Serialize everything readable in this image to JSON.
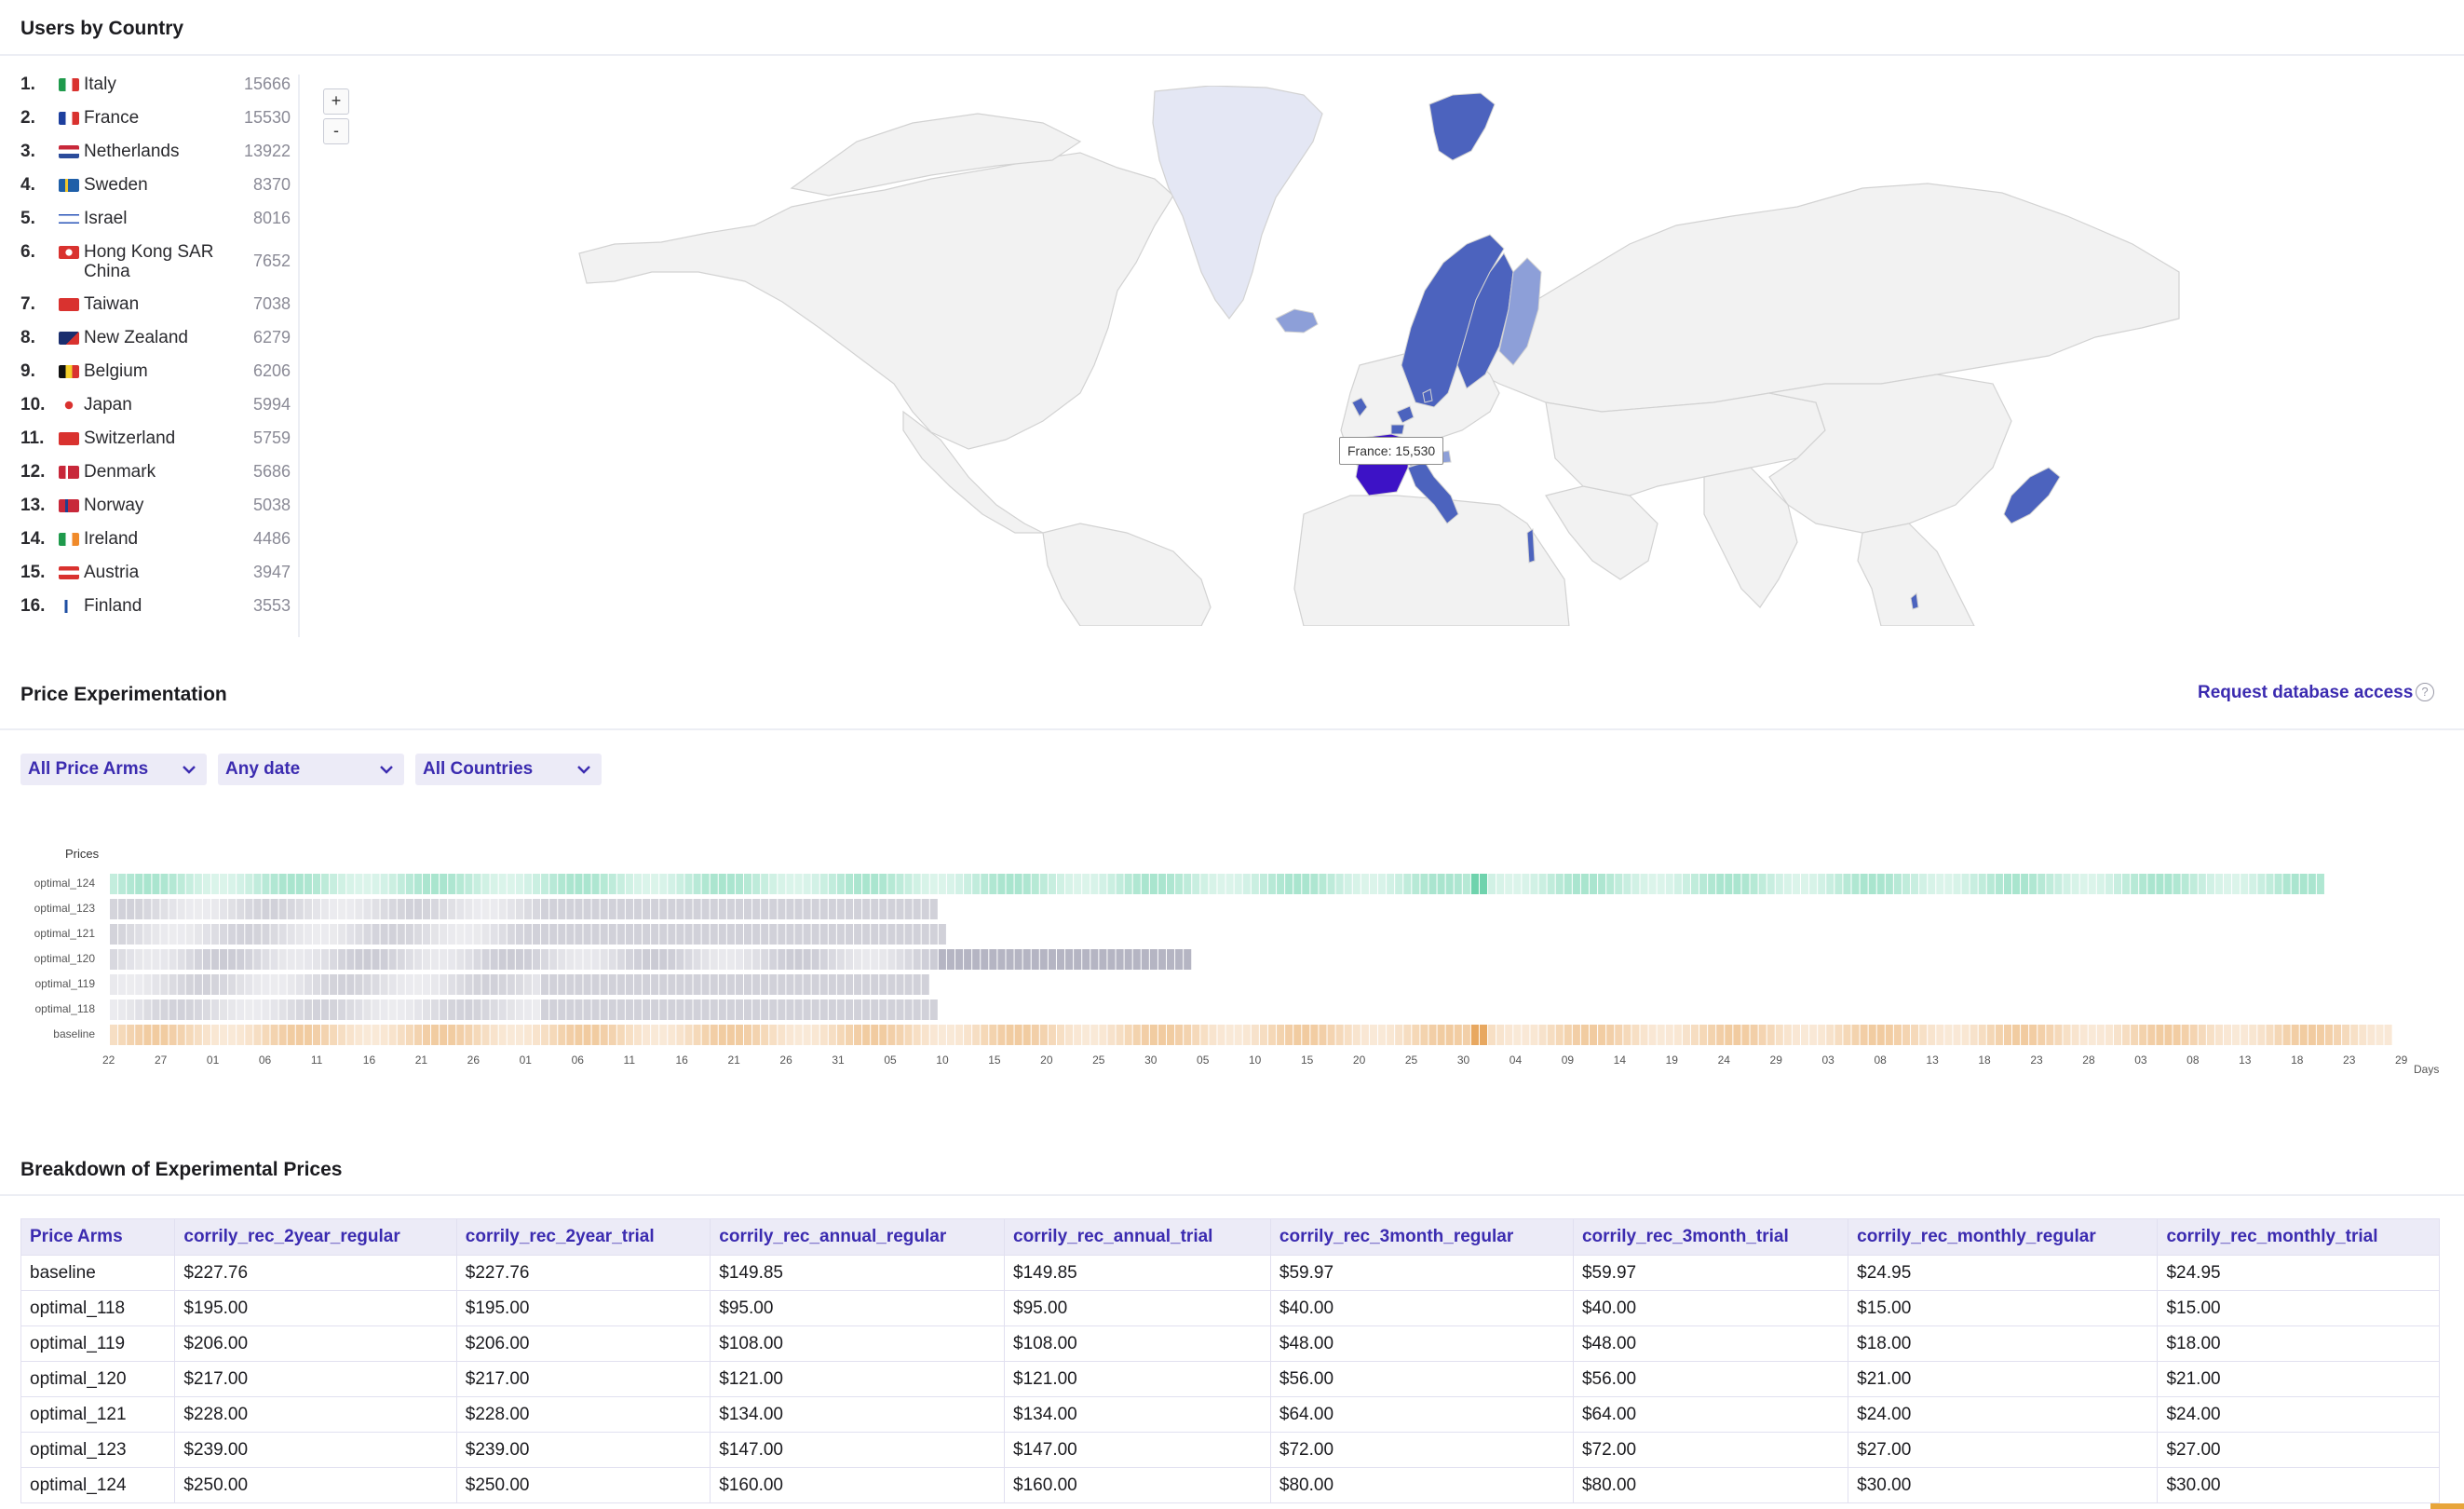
{
  "users_by_country": {
    "title": "Users by Country",
    "countries": [
      {
        "rank": "1.",
        "name": "Italy",
        "value": "15666",
        "flag": "italy"
      },
      {
        "rank": "2.",
        "name": "France",
        "value": "15530",
        "flag": "france"
      },
      {
        "rank": "3.",
        "name": "Netherlands",
        "value": "13922",
        "flag": "netherlands"
      },
      {
        "rank": "4.",
        "name": "Sweden",
        "value": "8370",
        "flag": "sweden"
      },
      {
        "rank": "5.",
        "name": "Israel",
        "value": "8016",
        "flag": "israel"
      },
      {
        "rank": "6.",
        "name": "Hong Kong SAR China",
        "value": "7652",
        "flag": "hong-kong"
      },
      {
        "rank": "7.",
        "name": "Taiwan",
        "value": "7038",
        "flag": "taiwan"
      },
      {
        "rank": "8.",
        "name": "New Zealand",
        "value": "6279",
        "flag": "new-zealand"
      },
      {
        "rank": "9.",
        "name": "Belgium",
        "value": "6206",
        "flag": "belgium"
      },
      {
        "rank": "10.",
        "name": "Japan",
        "value": "5994",
        "flag": "japan"
      },
      {
        "rank": "11.",
        "name": "Switzerland",
        "value": "5759",
        "flag": "switzerland"
      },
      {
        "rank": "12.",
        "name": "Denmark",
        "value": "5686",
        "flag": "denmark"
      },
      {
        "rank": "13.",
        "name": "Norway",
        "value": "5038",
        "flag": "norway"
      },
      {
        "rank": "14.",
        "name": "Ireland",
        "value": "4486",
        "flag": "ireland"
      },
      {
        "rank": "15.",
        "name": "Austria",
        "value": "3947",
        "flag": "austria"
      },
      {
        "rank": "16.",
        "name": "Finland",
        "value": "3553",
        "flag": "finland"
      }
    ],
    "zoom_in_label": "+",
    "zoom_out_label": "-",
    "tooltip": "France: 15,530",
    "map_colors": {
      "default": "#f2f2f2",
      "border": "#d2d2d2",
      "low": "#e4e7f4",
      "mid": "#8d9fd8",
      "high": "#4c63be",
      "hover": "#3d12c6"
    }
  },
  "price_experimentation": {
    "title": "Price Experimentation",
    "request_link": "Request database access",
    "help_icon": "?",
    "filters": [
      {
        "label": "All Price Arms"
      },
      {
        "label": "Any date"
      },
      {
        "label": "All Countries"
      }
    ],
    "chart_data": {
      "type": "heatmap",
      "title": "Prices",
      "xlabel": "Days",
      "rows": [
        "optimal_124",
        "optimal_123",
        "optimal_121",
        "optimal_120",
        "optimal_119",
        "optimal_118",
        "baseline"
      ],
      "x_ticks": [
        "22",
        "27",
        "01",
        "06",
        "11",
        "16",
        "21",
        "26",
        "01",
        "06",
        "11",
        "16",
        "21",
        "26",
        "31",
        "05",
        "10",
        "15",
        "20",
        "25",
        "30",
        "05",
        "10",
        "15",
        "20",
        "25",
        "30",
        "04",
        "09",
        "14",
        "19",
        "24",
        "29",
        "03",
        "08",
        "13",
        "18",
        "23",
        "28",
        "03",
        "08",
        "13",
        "18",
        "23",
        "29"
      ],
      "row_colors": {
        "optimal_124": "#6fd3ad",
        "optimal_123": "#b3b3c0",
        "optimal_121": "#b3b3c0",
        "optimal_120": "#a8a8b8",
        "optimal_119": "#b3b3c0",
        "optimal_118": "#b3b3c0",
        "baseline": "#e8a860"
      }
    }
  },
  "breakdown": {
    "title": "Breakdown of Experimental Prices",
    "columns": [
      "Price Arms",
      "corrily_rec_2year_regular",
      "corrily_rec_2year_trial",
      "corrily_rec_annual_regular",
      "corrily_rec_annual_trial",
      "corrily_rec_3month_regular",
      "corrily_rec_3month_trial",
      "corrily_rec_monthly_regular",
      "corrily_rec_monthly_trial"
    ],
    "rows": [
      [
        "baseline",
        "$227.76",
        "$227.76",
        "$149.85",
        "$149.85",
        "$59.97",
        "$59.97",
        "$24.95",
        "$24.95"
      ],
      [
        "optimal_118",
        "$195.00",
        "$195.00",
        "$95.00",
        "$95.00",
        "$40.00",
        "$40.00",
        "$15.00",
        "$15.00"
      ],
      [
        "optimal_119",
        "$206.00",
        "$206.00",
        "$108.00",
        "$108.00",
        "$48.00",
        "$48.00",
        "$18.00",
        "$18.00"
      ],
      [
        "optimal_120",
        "$217.00",
        "$217.00",
        "$121.00",
        "$121.00",
        "$56.00",
        "$56.00",
        "$21.00",
        "$21.00"
      ],
      [
        "optimal_121",
        "$228.00",
        "$228.00",
        "$134.00",
        "$134.00",
        "$64.00",
        "$64.00",
        "$24.00",
        "$24.00"
      ],
      [
        "optimal_123",
        "$239.00",
        "$239.00",
        "$147.00",
        "$147.00",
        "$72.00",
        "$72.00",
        "$27.00",
        "$27.00"
      ],
      [
        "optimal_124",
        "$250.00",
        "$250.00",
        "$160.00",
        "$160.00",
        "$80.00",
        "$80.00",
        "$30.00",
        "$30.00"
      ]
    ]
  }
}
